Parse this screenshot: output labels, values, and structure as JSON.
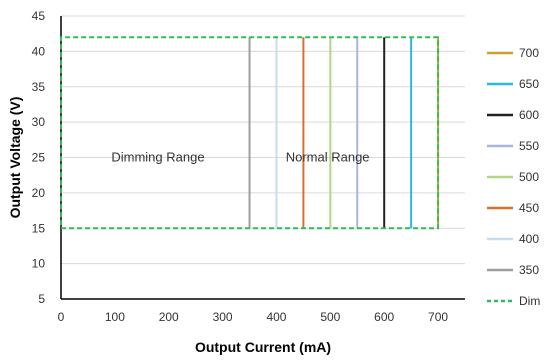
{
  "chart_data": {
    "type": "line",
    "title": "",
    "xlabel": "Output Current  (mA)",
    "ylabel": "Output Voltage  (V)",
    "xlim": [
      0,
      750
    ],
    "ylim": [
      5,
      45
    ],
    "x_ticks": [
      0,
      100,
      200,
      300,
      400,
      500,
      600,
      700
    ],
    "y_ticks": [
      5,
      10,
      15,
      20,
      25,
      30,
      35,
      40,
      45
    ],
    "grid": "horizontal",
    "legend_position": "right",
    "annotations": [
      {
        "text": "Dimming Range",
        "x": 180,
        "y": 25
      },
      {
        "text": "Normal Range",
        "x": 495,
        "y": 25
      }
    ],
    "series": [
      {
        "name": "700",
        "color": "#c9a227",
        "style": "solid",
        "x": [
          700,
          700
        ],
        "y": [
          15,
          42
        ]
      },
      {
        "name": "650",
        "color": "#29b6e0",
        "style": "solid",
        "x": [
          650,
          650
        ],
        "y": [
          15,
          42
        ]
      },
      {
        "name": "600",
        "color": "#222222",
        "style": "solid",
        "x": [
          600,
          600
        ],
        "y": [
          15,
          42
        ]
      },
      {
        "name": "550",
        "color": "#a9b4e0",
        "style": "solid",
        "x": [
          550,
          550
        ],
        "y": [
          15,
          42
        ]
      },
      {
        "name": "500",
        "color": "#b5d48a",
        "style": "solid",
        "x": [
          500,
          500
        ],
        "y": [
          15,
          42
        ]
      },
      {
        "name": "450",
        "color": "#d9702e",
        "style": "solid",
        "x": [
          450,
          450
        ],
        "y": [
          15,
          42
        ]
      },
      {
        "name": "400",
        "color": "#c8dcef",
        "style": "solid",
        "x": [
          400,
          400
        ],
        "y": [
          15,
          42
        ]
      },
      {
        "name": "350",
        "color": "#9e9e9e",
        "style": "solid",
        "x": [
          350,
          350
        ],
        "y": [
          15,
          42
        ]
      },
      {
        "name": "Dim",
        "color": "#2ebd5a",
        "style": "dashed",
        "x": [
          0,
          700,
          700,
          0,
          0
        ],
        "y": [
          15,
          15,
          42,
          42,
          15
        ]
      }
    ]
  }
}
